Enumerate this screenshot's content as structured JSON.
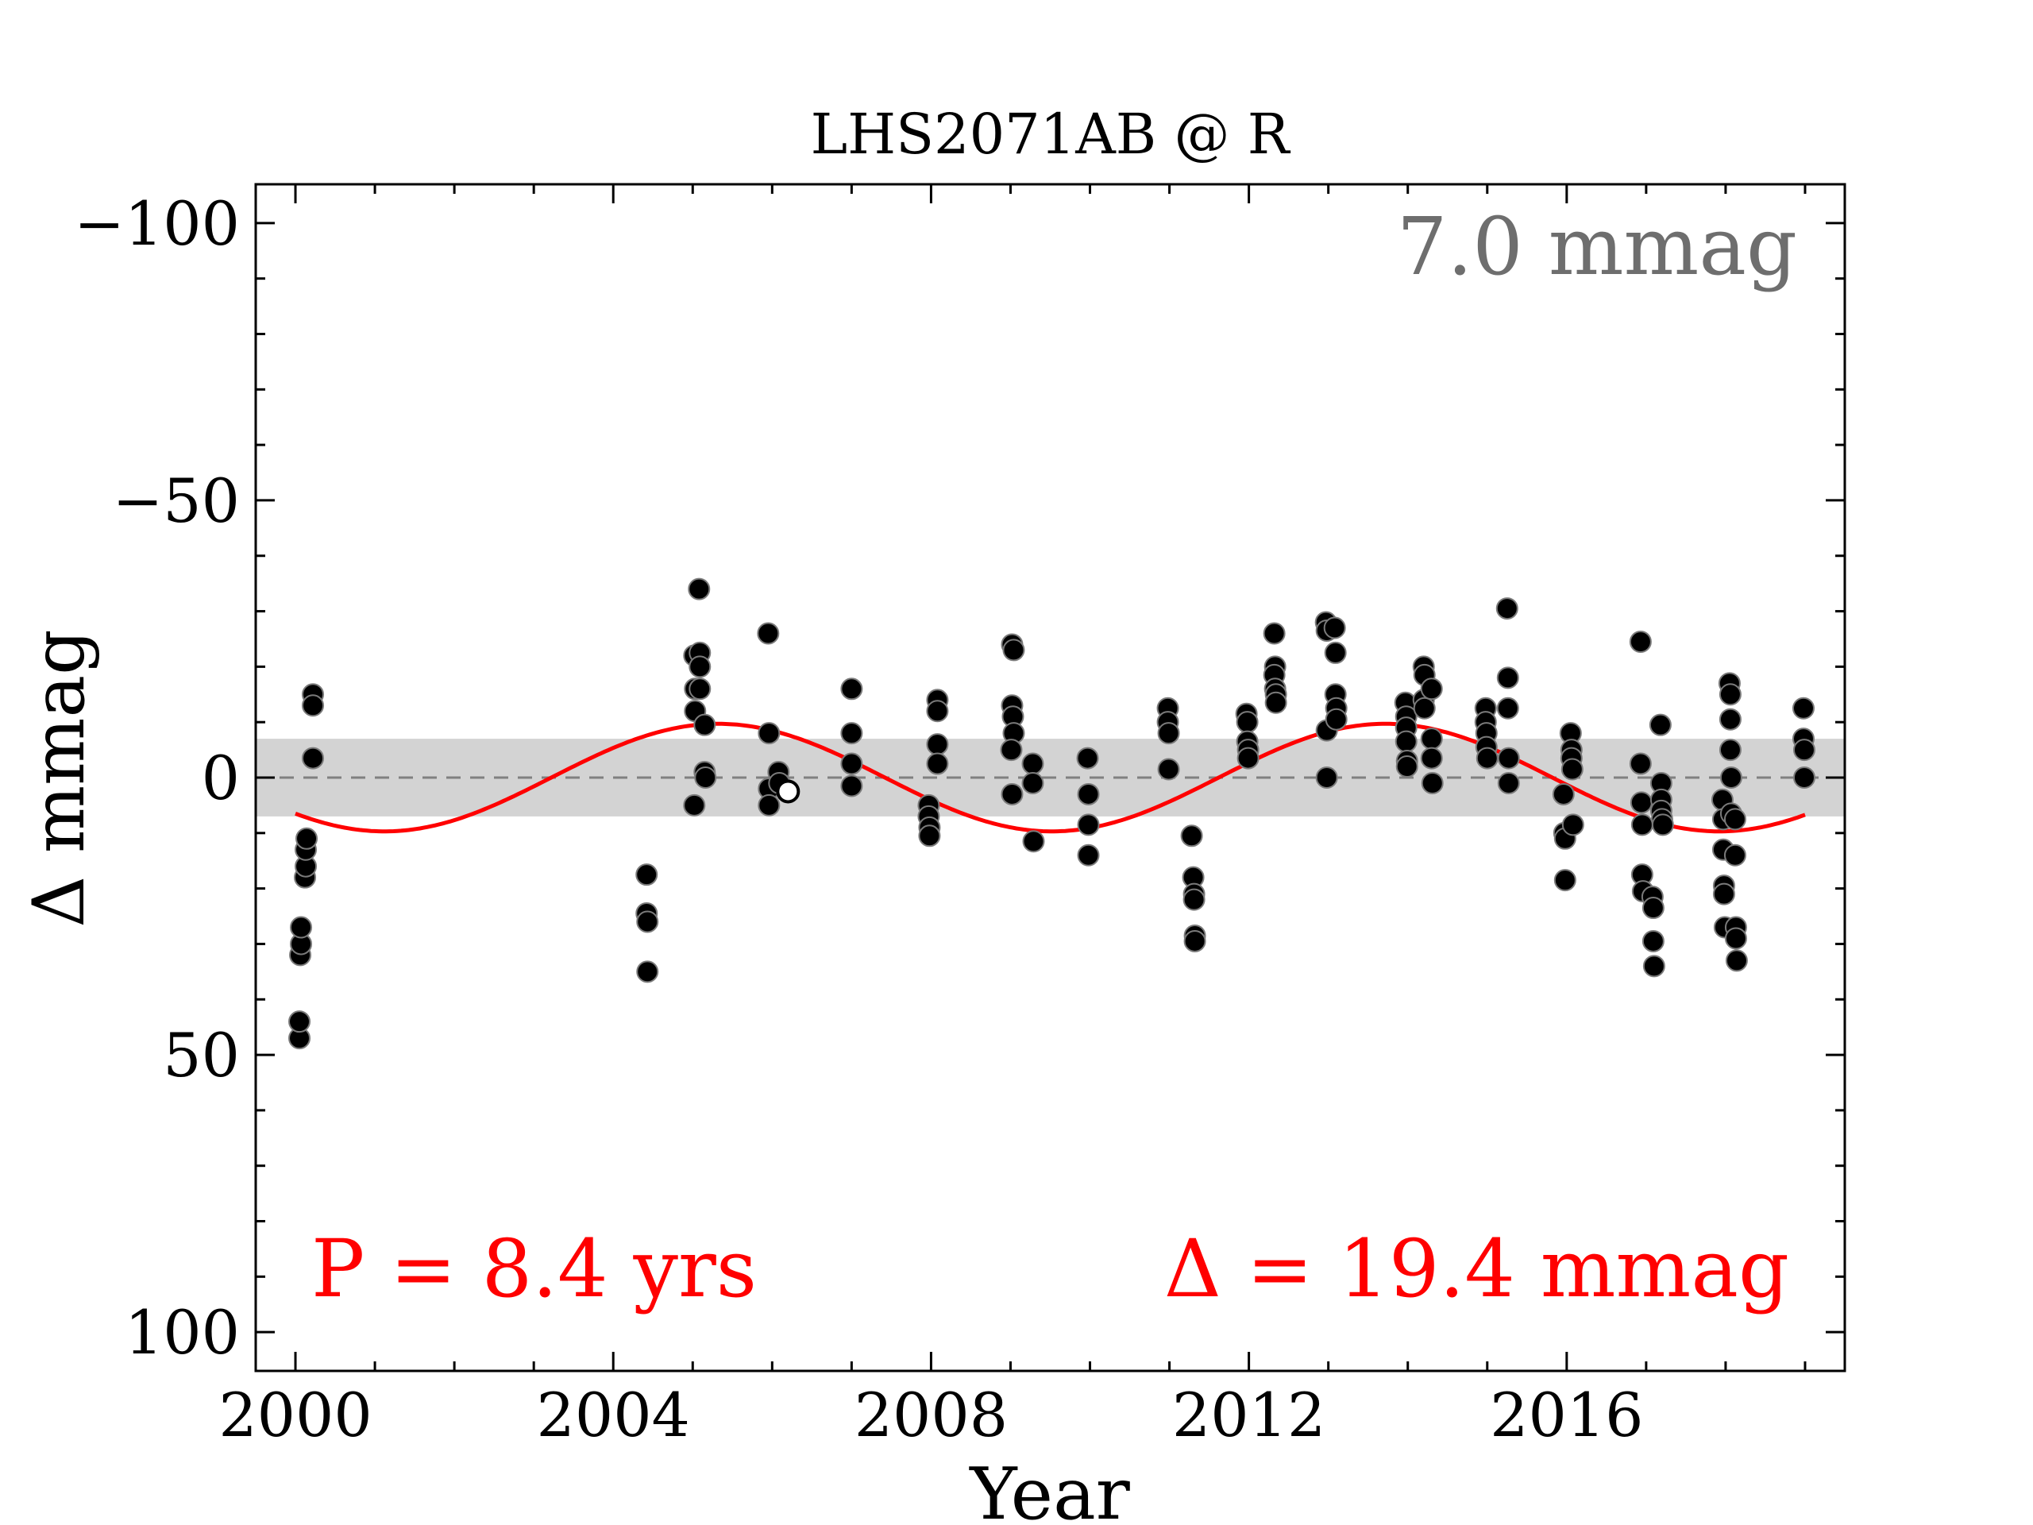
{
  "chart_data": {
    "type": "scatter",
    "title": "LHS2071AB @ R",
    "xlabel": "Year",
    "ylabel": "Δ  mmag",
    "xlim": [
      1999.5,
      2019.5
    ],
    "ylim": [
      -107,
      107
    ],
    "y_inverted": true,
    "x_ticks": [
      2000,
      2004,
      2008,
      2012,
      2016
    ],
    "y_ticks": [
      -100,
      -50,
      0,
      50,
      100
    ],
    "y_tick_labels": [
      "−100",
      "−50",
      "0",
      "50",
      "100"
    ],
    "band_half_width": 7.0,
    "band_label": "7.0 mmag",
    "period_label": "P = 8.4 yrs",
    "amplitude_label": "Δ = 19.4 mmag",
    "fit": {
      "period": 8.4,
      "amplitude": 9.7,
      "t0": 2001.12,
      "x_range": [
        2000.0,
        2019.0
      ]
    },
    "colors": {
      "fit": "#ff0000",
      "band": "#d3d3d3",
      "points": "#000000",
      "band_label": "#6e6e6e",
      "annotations": "#ff0000"
    },
    "points": [
      {
        "x": 2000.05,
        "y": 47
      },
      {
        "x": 2000.05,
        "y": 44
      },
      {
        "x": 2000.06,
        "y": 32
      },
      {
        "x": 2000.07,
        "y": 30
      },
      {
        "x": 2000.07,
        "y": 27
      },
      {
        "x": 2000.12,
        "y": 18
      },
      {
        "x": 2000.13,
        "y": 16
      },
      {
        "x": 2000.13,
        "y": 13
      },
      {
        "x": 2000.14,
        "y": 11
      },
      {
        "x": 2000.22,
        "y": -15
      },
      {
        "x": 2000.22,
        "y": -13
      },
      {
        "x": 2000.22,
        "y": -3.5
      },
      {
        "x": 2004.42,
        "y": 17.5
      },
      {
        "x": 2004.42,
        "y": 24.5
      },
      {
        "x": 2004.43,
        "y": 26
      },
      {
        "x": 2004.43,
        "y": 35
      },
      {
        "x": 2005.02,
        "y": -22
      },
      {
        "x": 2005.03,
        "y": -16
      },
      {
        "x": 2005.03,
        "y": -12
      },
      {
        "x": 2005.02,
        "y": 5
      },
      {
        "x": 2005.08,
        "y": -34
      },
      {
        "x": 2005.09,
        "y": -22.5
      },
      {
        "x": 2005.09,
        "y": -20
      },
      {
        "x": 2005.09,
        "y": -16
      },
      {
        "x": 2005.15,
        "y": -9.5
      },
      {
        "x": 2005.15,
        "y": -1
      },
      {
        "x": 2005.16,
        "y": 0
      },
      {
        "x": 2005.95,
        "y": -26
      },
      {
        "x": 2005.96,
        "y": -8
      },
      {
        "x": 2005.96,
        "y": 2
      },
      {
        "x": 2005.96,
        "y": 5
      },
      {
        "x": 2006.08,
        "y": -1
      },
      {
        "x": 2006.09,
        "y": 1
      },
      {
        "x": 2006.2,
        "y": 2.5,
        "open": true
      },
      {
        "x": 2007.0,
        "y": -16
      },
      {
        "x": 2007.0,
        "y": -8
      },
      {
        "x": 2007.0,
        "y": -2.5
      },
      {
        "x": 2007.0,
        "y": 1.5
      },
      {
        "x": 2007.97,
        "y": 5
      },
      {
        "x": 2007.97,
        "y": 7
      },
      {
        "x": 2007.98,
        "y": 9
      },
      {
        "x": 2007.98,
        "y": 10.5
      },
      {
        "x": 2008.08,
        "y": -14
      },
      {
        "x": 2008.08,
        "y": -12
      },
      {
        "x": 2008.08,
        "y": -6
      },
      {
        "x": 2008.08,
        "y": -2.5
      },
      {
        "x": 2009.02,
        "y": -24
      },
      {
        "x": 2009.04,
        "y": -23
      },
      {
        "x": 2009.02,
        "y": -13
      },
      {
        "x": 2009.03,
        "y": -11
      },
      {
        "x": 2009.04,
        "y": -8
      },
      {
        "x": 2009.01,
        "y": -5
      },
      {
        "x": 2009.02,
        "y": 3
      },
      {
        "x": 2009.28,
        "y": -2.5
      },
      {
        "x": 2009.28,
        "y": 1
      },
      {
        "x": 2009.29,
        "y": 11.5
      },
      {
        "x": 2009.97,
        "y": -3.5
      },
      {
        "x": 2009.98,
        "y": 3
      },
      {
        "x": 2009.98,
        "y": 8.5
      },
      {
        "x": 2009.98,
        "y": 14
      },
      {
        "x": 2010.98,
        "y": -12.5
      },
      {
        "x": 2010.98,
        "y": -10
      },
      {
        "x": 2010.99,
        "y": -8
      },
      {
        "x": 2010.99,
        "y": -1.5
      },
      {
        "x": 2011.28,
        "y": 10.5
      },
      {
        "x": 2011.3,
        "y": 18
      },
      {
        "x": 2011.31,
        "y": 21
      },
      {
        "x": 2011.31,
        "y": 22
      },
      {
        "x": 2011.32,
        "y": 28.5
      },
      {
        "x": 2011.32,
        "y": 29.5
      },
      {
        "x": 2011.97,
        "y": -11.5
      },
      {
        "x": 2011.98,
        "y": -10
      },
      {
        "x": 2011.98,
        "y": -6.5
      },
      {
        "x": 2011.99,
        "y": -5
      },
      {
        "x": 2011.99,
        "y": -3.5
      },
      {
        "x": 2012.32,
        "y": -26
      },
      {
        "x": 2012.33,
        "y": -20
      },
      {
        "x": 2012.32,
        "y": -18.5
      },
      {
        "x": 2012.33,
        "y": -16
      },
      {
        "x": 2012.34,
        "y": -15
      },
      {
        "x": 2012.34,
        "y": -13.5
      },
      {
        "x": 2012.97,
        "y": -28
      },
      {
        "x": 2012.98,
        "y": -26.5
      },
      {
        "x": 2012.98,
        "y": -8.5
      },
      {
        "x": 2012.98,
        "y": 0
      },
      {
        "x": 2013.08,
        "y": -27
      },
      {
        "x": 2013.09,
        "y": -22.5
      },
      {
        "x": 2013.09,
        "y": -15
      },
      {
        "x": 2013.1,
        "y": -12.5
      },
      {
        "x": 2013.1,
        "y": -10.5
      },
      {
        "x": 2013.97,
        "y": -13.5
      },
      {
        "x": 2013.98,
        "y": -11
      },
      {
        "x": 2013.98,
        "y": -9
      },
      {
        "x": 2013.98,
        "y": -6.5
      },
      {
        "x": 2013.99,
        "y": -3
      },
      {
        "x": 2013.99,
        "y": -2
      },
      {
        "x": 2014.2,
        "y": -20
      },
      {
        "x": 2014.21,
        "y": -18.5
      },
      {
        "x": 2014.2,
        "y": -14
      },
      {
        "x": 2014.21,
        "y": -12.5
      },
      {
        "x": 2014.3,
        "y": -16
      },
      {
        "x": 2014.3,
        "y": -7
      },
      {
        "x": 2014.3,
        "y": -3.5
      },
      {
        "x": 2014.31,
        "y": 1
      },
      {
        "x": 2014.98,
        "y": -12.5
      },
      {
        "x": 2014.98,
        "y": -10
      },
      {
        "x": 2014.99,
        "y": -8
      },
      {
        "x": 2014.99,
        "y": -5.5
      },
      {
        "x": 2015.0,
        "y": -3.5
      },
      {
        "x": 2015.25,
        "y": -30.5
      },
      {
        "x": 2015.26,
        "y": -18
      },
      {
        "x": 2015.26,
        "y": -12.5
      },
      {
        "x": 2015.27,
        "y": -3.5
      },
      {
        "x": 2015.27,
        "y": 1
      },
      {
        "x": 2015.96,
        "y": 3
      },
      {
        "x": 2015.97,
        "y": 10
      },
      {
        "x": 2015.98,
        "y": 11
      },
      {
        "x": 2015.98,
        "y": 18.5
      },
      {
        "x": 2016.05,
        "y": -8
      },
      {
        "x": 2016.06,
        "y": -5
      },
      {
        "x": 2016.06,
        "y": -3.5
      },
      {
        "x": 2016.07,
        "y": -1.5
      },
      {
        "x": 2016.08,
        "y": 8.5
      },
      {
        "x": 2016.93,
        "y": -24.5
      },
      {
        "x": 2016.93,
        "y": -2.5
      },
      {
        "x": 2016.94,
        "y": 4.5
      },
      {
        "x": 2016.95,
        "y": 8.5
      },
      {
        "x": 2016.95,
        "y": 17.5
      },
      {
        "x": 2016.96,
        "y": 20.5
      },
      {
        "x": 2017.08,
        "y": 21.5
      },
      {
        "x": 2017.09,
        "y": 23.5
      },
      {
        "x": 2017.09,
        "y": 29.5
      },
      {
        "x": 2017.1,
        "y": 34
      },
      {
        "x": 2017.18,
        "y": -9.5
      },
      {
        "x": 2017.19,
        "y": 1
      },
      {
        "x": 2017.19,
        "y": 4
      },
      {
        "x": 2017.19,
        "y": 6
      },
      {
        "x": 2017.2,
        "y": 7.5
      },
      {
        "x": 2017.21,
        "y": 8.5
      },
      {
        "x": 2017.96,
        "y": 4
      },
      {
        "x": 2017.97,
        "y": 7.5
      },
      {
        "x": 2017.97,
        "y": 13
      },
      {
        "x": 2017.98,
        "y": 19.5
      },
      {
        "x": 2017.98,
        "y": 21
      },
      {
        "x": 2017.99,
        "y": 27
      },
      {
        "x": 2018.05,
        "y": -17
      },
      {
        "x": 2018.06,
        "y": -15
      },
      {
        "x": 2018.06,
        "y": -10.5
      },
      {
        "x": 2018.06,
        "y": -5
      },
      {
        "x": 2018.07,
        "y": 0
      },
      {
        "x": 2018.07,
        "y": 6.5
      },
      {
        "x": 2018.12,
        "y": 7.5
      },
      {
        "x": 2018.12,
        "y": 14
      },
      {
        "x": 2018.13,
        "y": 27
      },
      {
        "x": 2018.13,
        "y": 29
      },
      {
        "x": 2018.14,
        "y": 33
      },
      {
        "x": 2018.98,
        "y": -12.5
      },
      {
        "x": 2018.98,
        "y": -7
      },
      {
        "x": 2018.99,
        "y": -5
      },
      {
        "x": 2018.99,
        "y": 0
      }
    ]
  }
}
